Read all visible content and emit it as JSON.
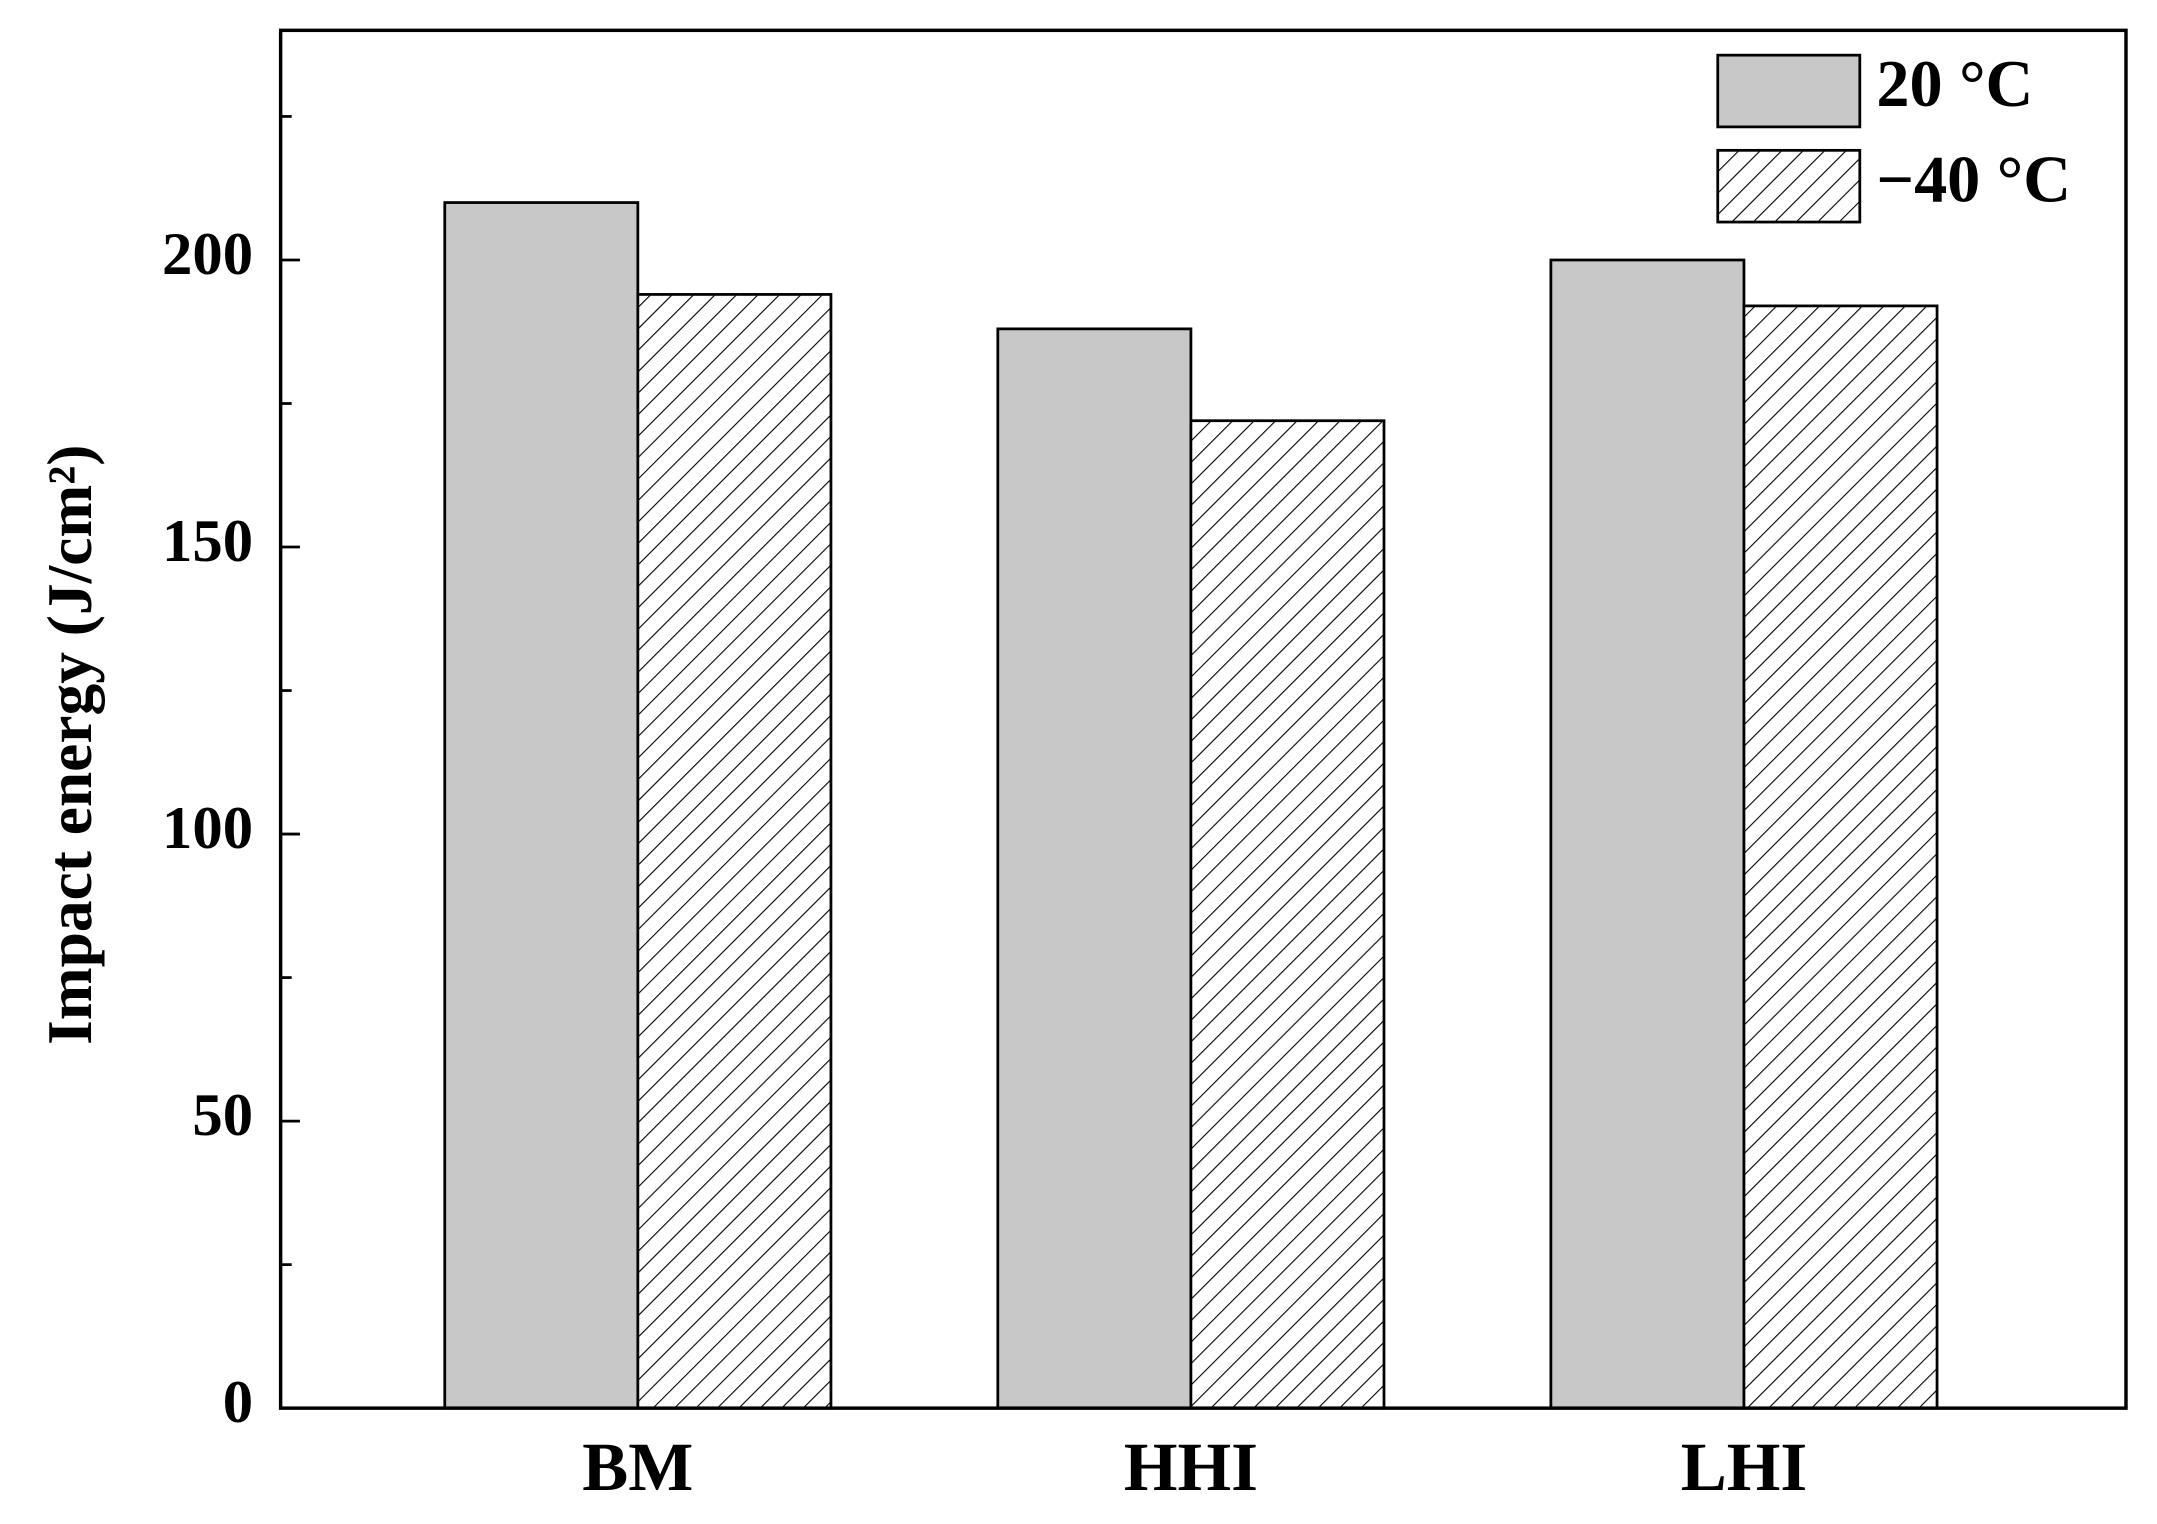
{
  "chart_data": {
    "type": "bar",
    "ylabel": "Impact energy (J/cm²)",
    "categories": [
      "BM",
      "HHI",
      "LHI"
    ],
    "series": [
      {
        "name": "20 °C",
        "color": "#c8c8c8",
        "hatch": false,
        "values": [
          210,
          188,
          200
        ]
      },
      {
        "name": "−40 °C",
        "color": "#ffffff",
        "hatch": true,
        "values": [
          194,
          172,
          192
        ]
      }
    ],
    "ylim": [
      0,
      240
    ],
    "yticks": [
      0,
      50,
      100,
      150,
      200
    ],
    "yticks_minor": [
      25,
      75,
      125,
      175,
      225
    ],
    "grid": false,
    "legend": "upper right"
  }
}
